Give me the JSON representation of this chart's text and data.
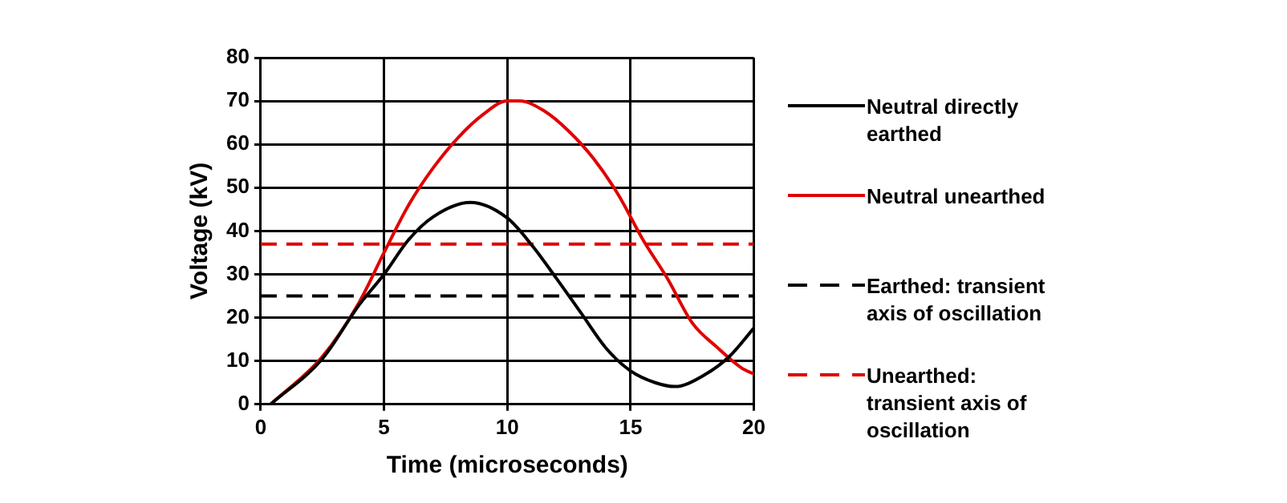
{
  "chart_data": {
    "type": "line",
    "xlabel": "Time (microseconds)",
    "ylabel": "Voltage (kV)",
    "xlim": [
      0,
      20
    ],
    "xticks": [
      0,
      5,
      10,
      15,
      20
    ],
    "ylim": [
      0,
      80
    ],
    "yticks": [
      0,
      10,
      20,
      30,
      40,
      50,
      60,
      70,
      80
    ],
    "grid": true,
    "legend": "right",
    "series": [
      {
        "name": "Neutral directly earthed",
        "color": "#000000",
        "x": [
          0.4,
          2.5,
          4,
          5,
          6,
          7,
          8.5,
          10,
          11,
          12,
          13,
          14,
          15,
          16,
          16.8,
          18,
          19,
          20
        ],
        "values": [
          0,
          10.5,
          23,
          30,
          38,
          43.3,
          46.6,
          43,
          36.7,
          29,
          21,
          13,
          7.7,
          5,
          4.1,
          6.8,
          11,
          17.6
        ]
      },
      {
        "name": "Neutral unearthed",
        "color": "#e00000",
        "x": [
          0.4,
          2.5,
          4,
          5,
          6,
          7,
          8,
          9,
          10,
          10.5,
          11.5,
          12.5,
          13.5,
          14.5,
          15.5,
          16.5,
          17.5,
          18.5,
          19.5,
          20
        ],
        "values": [
          0,
          11,
          23.6,
          35,
          46,
          54.6,
          61.5,
          66.8,
          70,
          70,
          67.7,
          63,
          56.7,
          48.4,
          38,
          29,
          18.8,
          13.2,
          8.4,
          7
        ]
      },
      {
        "name": "Earthed: transient axis of oscillation",
        "color": "#000000",
        "line_style": "dashed",
        "x": [
          0,
          20
        ],
        "values": [
          25,
          25
        ]
      },
      {
        "name": "Unearthed: transient axis of oscillation",
        "color": "#e00000",
        "line_style": "dashed",
        "x": [
          0,
          20
        ],
        "values": [
          37,
          37
        ]
      }
    ]
  }
}
